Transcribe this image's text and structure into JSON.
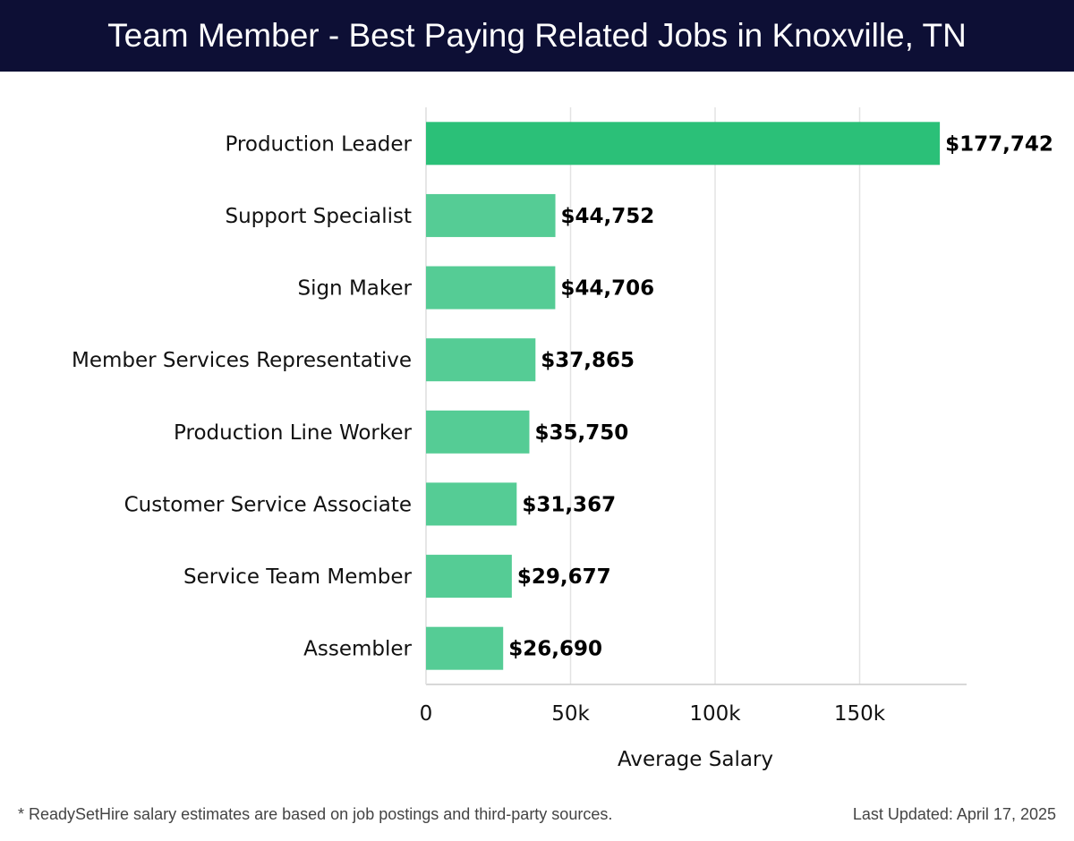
{
  "header": {
    "title": "Team Member - Best Paying Related Jobs in Knoxville, TN"
  },
  "chart_data": {
    "type": "bar",
    "orientation": "horizontal",
    "title": "Team Member - Best Paying Related Jobs in Knoxville, TN",
    "xlabel": "Average Salary",
    "ylabel": "",
    "xlim": [
      0,
      187000
    ],
    "ticks": [
      0,
      50000,
      100000,
      150000
    ],
    "tick_labels": [
      "0",
      "50k",
      "100k",
      "150k"
    ],
    "grid": true,
    "categories": [
      "Production Leader",
      "Support Specialist",
      "Sign Maker",
      "Member Services Representative",
      "Production Line Worker",
      "Customer Service Associate",
      "Service Team Member",
      "Assembler"
    ],
    "values": [
      177742,
      44752,
      44706,
      37865,
      35750,
      31367,
      29677,
      26690
    ],
    "value_labels": [
      "$177,742",
      "$44,752",
      "$44,706",
      "$37,865",
      "$35,750",
      "$31,367",
      "$29,677",
      "$26,690"
    ],
    "colors": {
      "highlight": "#2bc078",
      "bar": "#55cc95",
      "grid": "#e3e3e3",
      "axis": "#cccccc"
    }
  },
  "footer": {
    "note": "* ReadySetHire salary estimates are based on job postings and third-party sources.",
    "updated": "Last Updated: April 17, 2025"
  }
}
